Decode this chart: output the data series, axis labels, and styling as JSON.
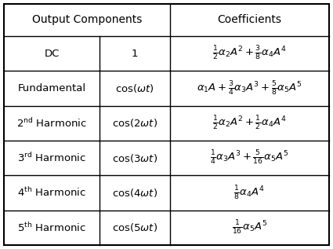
{
  "col1_header": "Output Components",
  "col2_header": "Coefficients",
  "rows": [
    {
      "label": "DC",
      "cosine": "1",
      "coeff": "$\\frac{1}{2}\\alpha_2 A^2+\\frac{3}{8}\\alpha_4 A^4$"
    },
    {
      "label": "Fundamental",
      "cosine": "$\\cos(\\omega t)$",
      "coeff": "$\\alpha_1 A+\\frac{3}{4}\\alpha_3 A^3+\\frac{5}{8}\\alpha_5 A^5$"
    },
    {
      "label": "$2^{\\mathrm{nd}}$ Harmonic",
      "cosine": "$\\cos(2\\omega t)$",
      "coeff": "$\\frac{1}{2}\\alpha_2 A^2+\\frac{1}{2}\\alpha_4 A^4$"
    },
    {
      "label": "$3^{\\mathrm{rd}}$ Harmonic",
      "cosine": "$\\cos(3\\omega t)$",
      "coeff": "$\\frac{1}{4}\\alpha_3 A^3+\\frac{5}{16}\\alpha_5 A^5$"
    },
    {
      "label": "$4^{\\mathrm{th}}$ Harmonic",
      "cosine": "$\\cos(4\\omega t)$",
      "coeff": "$\\frac{1}{8}\\alpha_4 A^4$"
    },
    {
      "label": "$5^{\\mathrm{th}}$ Harmonic",
      "cosine": "$\\cos(5\\omega t)$",
      "coeff": "$\\frac{1}{16}\\alpha_5 A^5$"
    }
  ],
  "background_color": "#ffffff",
  "border_color": "#000000",
  "header_fontsize": 10,
  "label_fontsize": 9.5,
  "cosine_fontsize": 9.5,
  "coeff_fontsize": 9.5
}
